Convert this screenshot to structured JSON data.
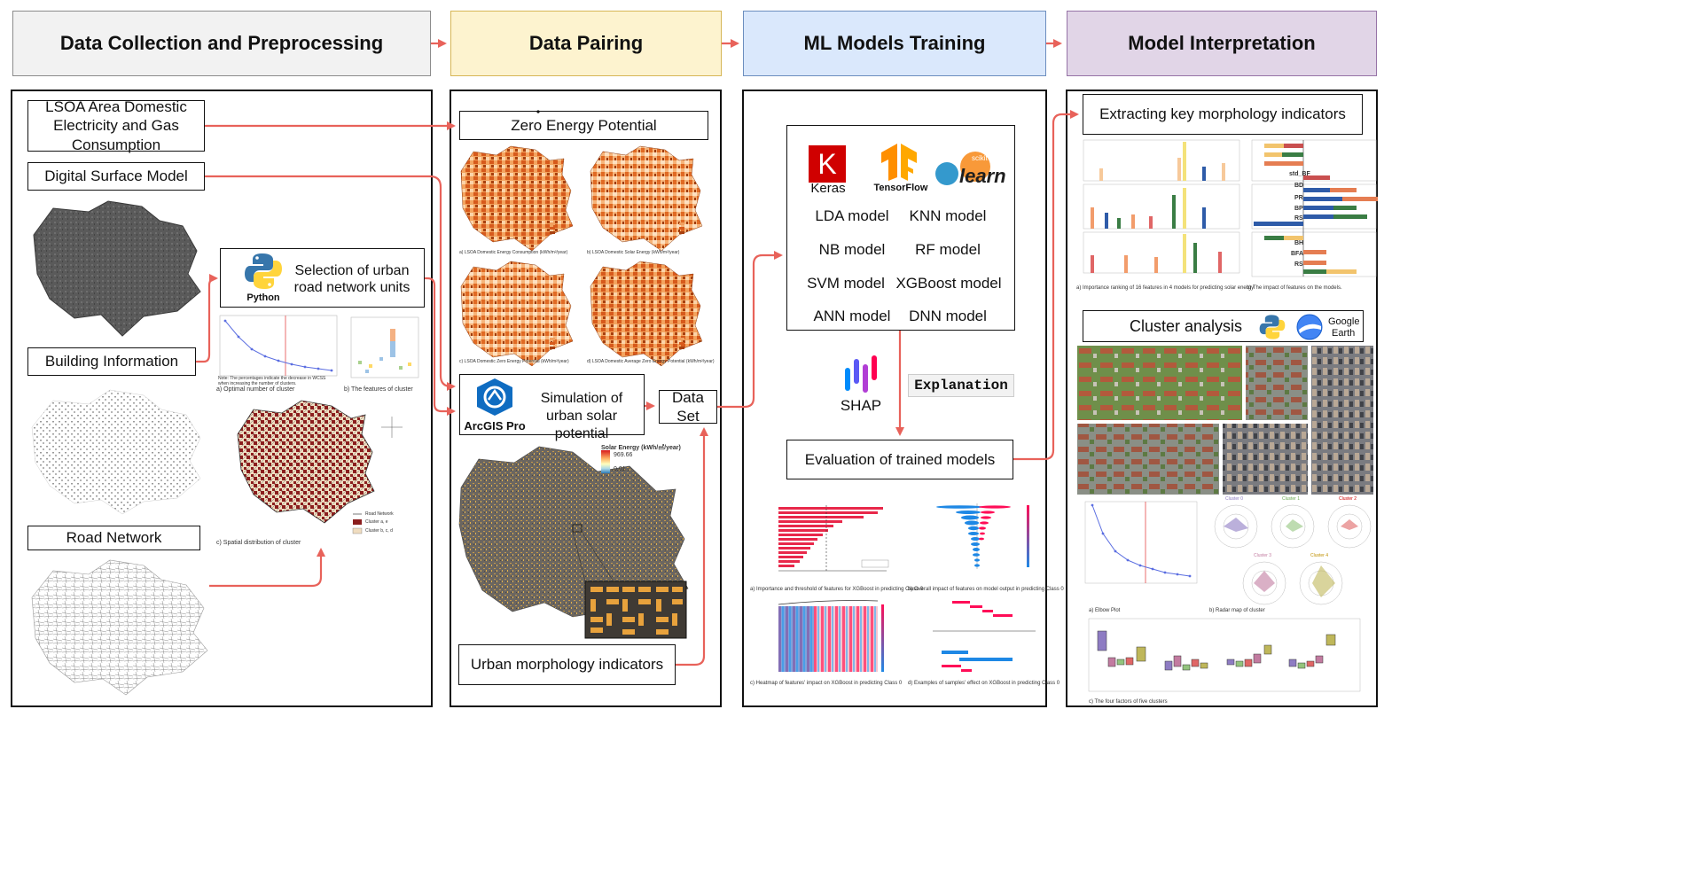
{
  "stages": [
    {
      "label": "Data Collection and Preprocessing",
      "color": "#f2f2f2",
      "border": "#8c8c8c"
    },
    {
      "label": "Data Pairing",
      "color": "#fdf3cf",
      "border": "#d6b656"
    },
    {
      "label": "ML Models Training",
      "color": "#dae8fc",
      "border": "#6c8ebf"
    },
    {
      "label": "Model Interpretation",
      "color": "#e1d5e7",
      "border": "#9673a6"
    }
  ],
  "collection": {
    "lsoa": "LSOA Area Domestic Electricity and Gas Consumption",
    "dsm": "Digital Surface Model",
    "selection": "Selection of urban road network units",
    "python": "Python",
    "building": "Building Information",
    "road": "Road Network",
    "cap_optimal": "a) Optimal number of cluster",
    "cap_features": "b) The features of cluster",
    "cap_spatial": "c) Spatial distribution of cluster",
    "note": "Note: The percentages indicate the decrease in WCSS when increasing the number of clusters.",
    "legend_road": "Road Network",
    "legend_c1": "Cluster a, e",
    "legend_c2": "Cluster b, c, d"
  },
  "pairing": {
    "zero": "Zero Energy Potential",
    "map_caps": [
      "a) LSOA Domestic Energy Consumption (kWh/m²/year)",
      "b) LSOA Domestic Solar Energy (kWh/m²/year)",
      "c) LSOA Domestic Zero Energy Potential (kWh/m²/year)",
      "d) LSOA Domestic Average Zero Energy Potential (kWh/m²/year)"
    ],
    "simulation": "Simulation of urban solar potential",
    "arcgis": "ArcGIS Pro",
    "dataset": "Data Set",
    "solar_title": "Solar Energy (kWh/㎡/year)",
    "solar_max": "969.66",
    "solar_min": "0.01",
    "morph": "Urban morphology indicators"
  },
  "training": {
    "keras": "Keras",
    "tensorflow": "TensorFlow",
    "sklearn_top": "scikit",
    "sklearn": "learn",
    "models": [
      "LDA model",
      "KNN model",
      "NB model",
      "RF model",
      "SVM model",
      "XGBoost model",
      "ANN model",
      "DNN model"
    ],
    "shap": "SHAP",
    "explanation": "Explanation",
    "evaluation": "Evaluation of trained models",
    "shap_caps": [
      "a) Importance and threshold of features for XGBoost in predicting Class 0",
      "b) Overall impact of features on model output in predicting Class 0",
      "c) Heatmap of features' impact on XGBoost in predicting Class 0",
      "d) Examples of samples' effect on XGBoost in predicting Class 0"
    ]
  },
  "interpretation": {
    "extract": "Extracting key morphology indicators",
    "cluster": "Cluster analysis",
    "google_top": "Google",
    "google_bottom": "Earth",
    "cap_a": "a) Importance ranking of 16 features in 4 models for predicting solar energy",
    "cap_b": "b) The impact of features on the models.",
    "cap_elbow": "a) Elbow Plot",
    "cap_radar": "b) Radar map of cluster",
    "cap_box": "c) The four factors of five clusters",
    "radar_titles": [
      "Cluster 0",
      "Cluster 1",
      "Cluster 2",
      "Cluster 3",
      "Cluster 4"
    ],
    "feature_labels": [
      "std_BF",
      "BD",
      "PR",
      "BP",
      "RS",
      "BH",
      "BFA",
      "RS"
    ]
  },
  "colors": {
    "arrow": "#e8625a",
    "accent_orange": "#e8742c",
    "keras_red": "#d00000"
  }
}
